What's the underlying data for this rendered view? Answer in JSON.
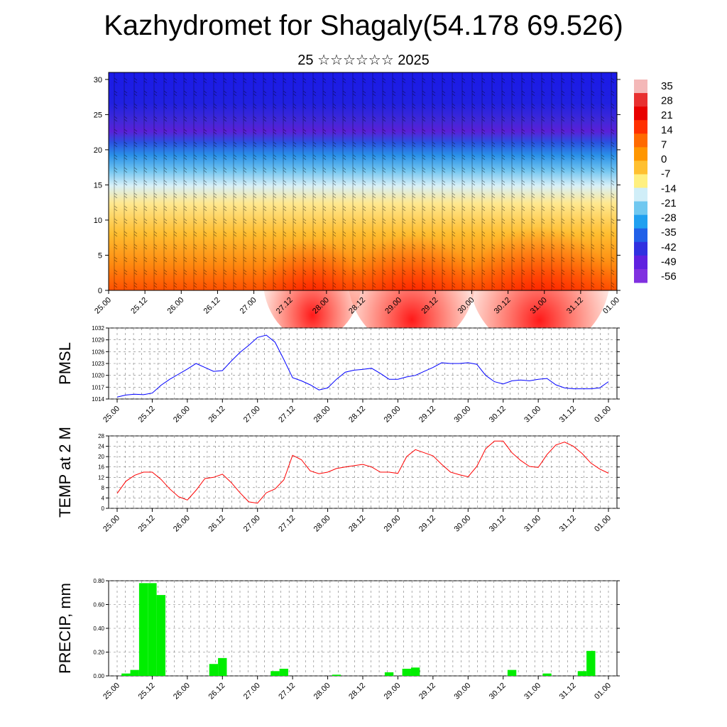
{
  "header": {
    "title": "Kazhydromet for Shagaly(54.178 69.526)",
    "subtitle": "25 ☆☆☆☆☆☆ 2025"
  },
  "colors": {
    "pmsl_line": "#0000ff",
    "temp_line": "#ff0000",
    "precip_bar": "#00ee00"
  },
  "chart_data": [
    {
      "type": "heatmap",
      "name": "cross-section",
      "x_ticks": [
        "25.00",
        "25.12",
        "26.00",
        "26.12",
        "27.00",
        "27.12",
        "28.00",
        "28.12",
        "29.00",
        "29.12",
        "30.00",
        "30.12",
        "31.00",
        "31.12",
        "01.00"
      ],
      "ylim": [
        0,
        31
      ],
      "y_ticks": [
        0,
        5,
        10,
        15,
        20,
        25,
        30
      ],
      "colorbar_labels": [
        "35",
        "28",
        "21",
        "14",
        "7",
        "0",
        "-7",
        "-14",
        "-21",
        "-28",
        "-35",
        "-42",
        "-49",
        "-56"
      ],
      "colorbar_colors": [
        "#f4b8b8",
        "#e83030",
        "#e80000",
        "#ff3000",
        "#ff6a00",
        "#ff9600",
        "#ffc030",
        "#fff080",
        "#d0eef8",
        "#70c8f0",
        "#20a0f0",
        "#2060e8",
        "#3030e0",
        "#6020e0",
        "#8030e0"
      ]
    },
    {
      "type": "line",
      "ylabel": "PMSL",
      "x_ticks": [
        "25.00",
        "25.12",
        "26.00",
        "26.12",
        "27.00",
        "27.12",
        "28.00",
        "28.12",
        "29.00",
        "29.12",
        "30.00",
        "30.12",
        "31.00",
        "31.12",
        "01.00"
      ],
      "ylim": [
        1014,
        1032
      ],
      "y_ticks": [
        "1014",
        "1017",
        "1020",
        "1023",
        "1026",
        "1029",
        "1032"
      ],
      "x": [
        0,
        3,
        6,
        9,
        12,
        15,
        18,
        21,
        24,
        27,
        30,
        33,
        36,
        39,
        42,
        45,
        48,
        51,
        54,
        57,
        60,
        63,
        66,
        69,
        72,
        75,
        78,
        81,
        84,
        87,
        90,
        93,
        96,
        99,
        102,
        105,
        108,
        111,
        114,
        117,
        120,
        123,
        126,
        129,
        132,
        135,
        138,
        141,
        144,
        147,
        150,
        153,
        156,
        159,
        162,
        165,
        168
      ],
      "values": [
        1014.5,
        1015.0,
        1015.2,
        1015.1,
        1015.5,
        1017.5,
        1019.0,
        1020.3,
        1021.6,
        1023.0,
        1022.0,
        1021.0,
        1021.2,
        1023.6,
        1025.8,
        1027.6,
        1029.6,
        1030.2,
        1028.4,
        1024.0,
        1019.4,
        1018.6,
        1017.6,
        1016.3,
        1016.8,
        1019.0,
        1020.8,
        1021.3,
        1021.5,
        1021.8,
        1020.5,
        1019.0,
        1019.0,
        1019.6,
        1020.0,
        1021.0,
        1022.0,
        1023.2,
        1023.0,
        1023.0,
        1023.2,
        1022.8,
        1020.0,
        1018.4,
        1017.8,
        1018.6,
        1018.8,
        1018.6,
        1019.0,
        1019.2,
        1017.6,
        1016.8,
        1016.6,
        1016.6,
        1016.6,
        1016.8,
        1018.4
      ]
    },
    {
      "type": "line",
      "ylabel": "TEMP at 2 M",
      "x_ticks": [
        "25.00",
        "25.12",
        "26.00",
        "26.12",
        "27.00",
        "27.12",
        "28.00",
        "28.12",
        "29.00",
        "29.12",
        "30.00",
        "30.12",
        "31.00",
        "31.12",
        "01.00"
      ],
      "ylim": [
        0,
        28
      ],
      "y_ticks": [
        "0",
        "4",
        "8",
        "12",
        "16",
        "20",
        "24",
        "28"
      ],
      "x": [
        0,
        3,
        6,
        9,
        12,
        15,
        18,
        21,
        24,
        27,
        30,
        33,
        36,
        39,
        42,
        45,
        48,
        51,
        54,
        57,
        60,
        63,
        66,
        69,
        72,
        75,
        78,
        81,
        84,
        87,
        90,
        93,
        96,
        99,
        102,
        105,
        108,
        111,
        114,
        117,
        120,
        123,
        126,
        129,
        132,
        135,
        138,
        141,
        144,
        147,
        150,
        153,
        156,
        159,
        162,
        165,
        168
      ],
      "values": [
        5.8,
        10.5,
        12.8,
        14.0,
        14.0,
        11.2,
        7.5,
        4.5,
        3.2,
        7.0,
        11.5,
        12.0,
        13.2,
        10.0,
        6.0,
        2.5,
        2.0,
        6.0,
        7.5,
        11.0,
        20.5,
        18.8,
        14.5,
        13.4,
        14.0,
        15.4,
        16.0,
        16.5,
        17.0,
        16.0,
        14.0,
        14.0,
        13.5,
        20.0,
        22.7,
        21.5,
        20.3,
        17.0,
        14.0,
        13.0,
        12.2,
        16.2,
        23.0,
        26.0,
        26.0,
        21.5,
        18.5,
        16.2,
        15.8,
        20.8,
        24.5,
        25.6,
        24.0,
        21.2,
        17.5,
        15.2,
        13.6
      ]
    },
    {
      "type": "bar",
      "ylabel": "PRECIP, mm",
      "x_ticks": [
        "25.00",
        "25.12",
        "26.00",
        "26.12",
        "27.00",
        "27.12",
        "28.00",
        "28.12",
        "29.00",
        "29.12",
        "30.00",
        "30.12",
        "31.00",
        "31.12",
        "01.00"
      ],
      "ylim": [
        0,
        0.8
      ],
      "y_ticks": [
        "0.00",
        "0.20",
        "0.40",
        "0.60",
        "0.80"
      ],
      "x": [
        3,
        6,
        9,
        12,
        15,
        33,
        36,
        54,
        57,
        75,
        93,
        99,
        102,
        135,
        147,
        159,
        162
      ],
      "values": [
        0.02,
        0.05,
        0.78,
        0.78,
        0.68,
        0.1,
        0.15,
        0.04,
        0.06,
        0.01,
        0.03,
        0.06,
        0.07,
        0.05,
        0.02,
        0.04,
        0.21
      ]
    }
  ]
}
